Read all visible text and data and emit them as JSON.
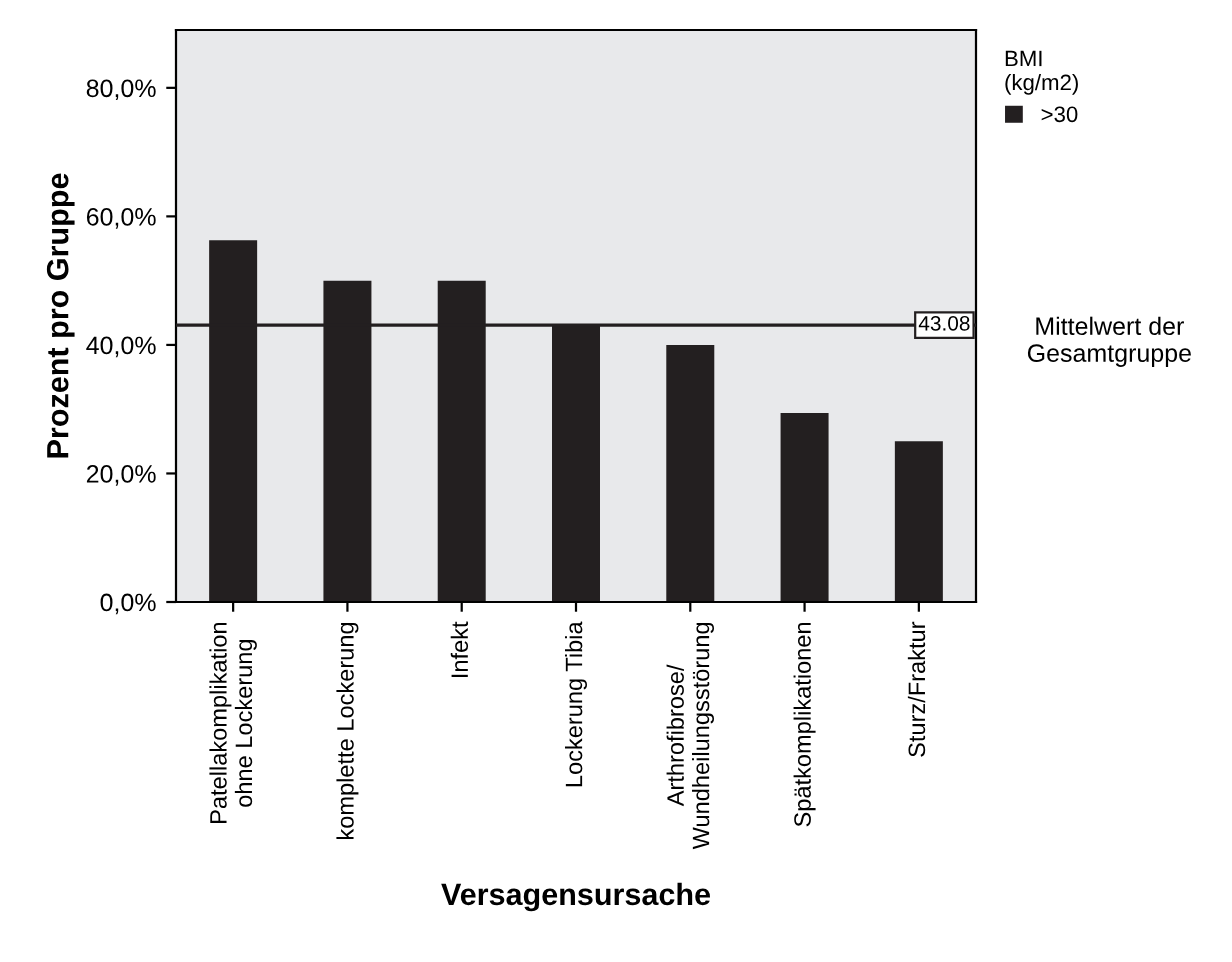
{
  "chart_data": {
    "type": "bar",
    "xlabel": "Versagensursache",
    "ylabel": "Prozent pro Gruppe",
    "legend_title": "BMI\n(kg/m2)",
    "categories": [
      "Patellakomplikation\nohne Lockerung",
      "komplette Lockerung",
      "Infekt",
      "Lockerung Tibia",
      "Arthrofibrose/\nWundheilungsstörung",
      "Spätkomplikationen",
      "Sturz/Fraktur"
    ],
    "series": [
      {
        "name": ">30",
        "color": "#231f20",
        "values": [
          56.3,
          50,
          50,
          43,
          40,
          29.4,
          25
        ]
      }
    ],
    "ylim": [
      0,
      89
    ],
    "yticks": [
      {
        "value": 0,
        "label": "0,0%"
      },
      {
        "value": 20,
        "label": "20,0%"
      },
      {
        "value": 40,
        "label": "40,0%"
      },
      {
        "value": 60,
        "label": "60,0%"
      },
      {
        "value": 80,
        "label": "80,0%"
      }
    ],
    "ref_lines": [
      {
        "axis": "y",
        "value": 43.08,
        "label": "Mittelwert der\nGesamtgruppe",
        "color": "#231f20"
      }
    ],
    "annotations": [
      "43.08"
    ],
    "grid": false,
    "legend": "top right"
  }
}
